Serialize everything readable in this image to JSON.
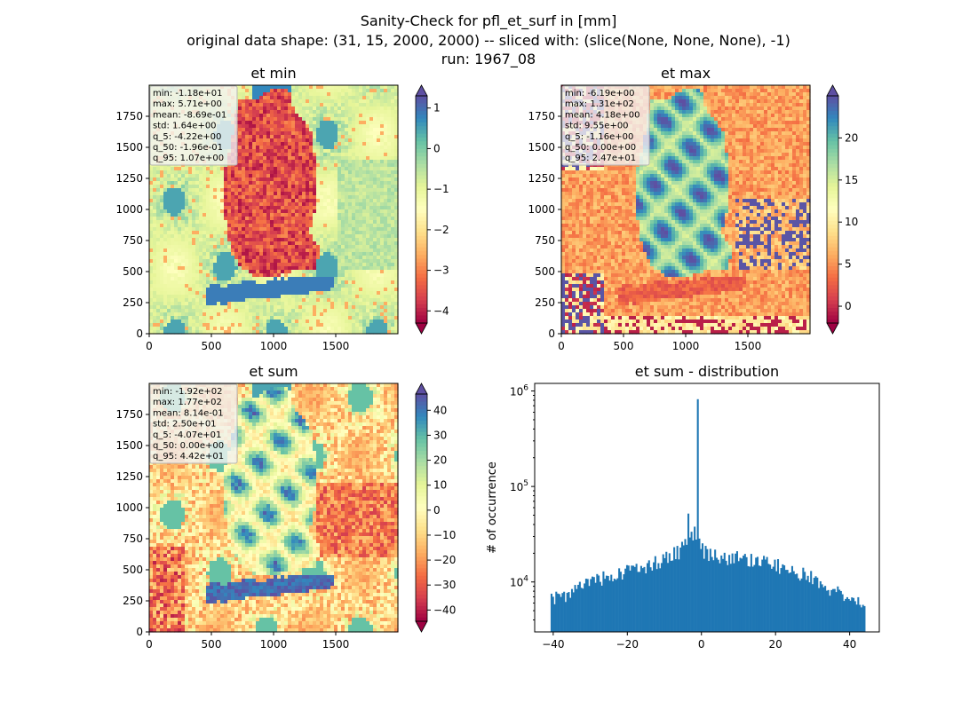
{
  "figure": {
    "suptitle": [
      "Sanity-Check for pfl_et_surf in [mm]",
      "original data shape: (31, 15, 2000, 2000) -- sliced with: (slice(None, None, None), -1)",
      "run: 1967_08"
    ]
  },
  "chart_data": [
    {
      "type": "heatmap",
      "title": "et min",
      "colormap": "Spectral",
      "xlim": [
        0,
        2000
      ],
      "ylim": [
        0,
        2000
      ],
      "xticks": [
        "0",
        "500",
        "1000",
        "1500"
      ],
      "yticks": [
        "0",
        "250",
        "500",
        "750",
        "1000",
        "1250",
        "1500",
        "1750"
      ],
      "color_range": [
        -4.3,
        1.3
      ],
      "colorbar_ticks": [
        "1",
        "0",
        "−1",
        "−2",
        "−3",
        "−4"
      ],
      "colorbar_tick_values": [
        1,
        0,
        -1,
        -2,
        -3,
        -4
      ],
      "stats": [
        "min: -1.18e+01",
        "max: 5.71e+00",
        "mean: -8.69e-01",
        "std: 1.64e+00",
        "q_5: -4.22e+00",
        "q_50: -1.96e-01",
        "q_95: 1.07e+00"
      ]
    },
    {
      "type": "heatmap",
      "title": "et max",
      "colormap": "Spectral",
      "xlim": [
        0,
        2000
      ],
      "ylim": [
        0,
        2000
      ],
      "xticks": [
        "0",
        "500",
        "1000",
        "1500"
      ],
      "yticks": [
        "0",
        "250",
        "500",
        "750",
        "1000",
        "1250",
        "1500",
        "1750"
      ],
      "color_range": [
        -2.0,
        25.0
      ],
      "colorbar_ticks": [
        "20",
        "15",
        "10",
        "5",
        "0"
      ],
      "colorbar_tick_values": [
        20,
        15,
        10,
        5,
        0
      ],
      "stats": [
        "min: -6.19e+00",
        "max: 1.31e+02",
        "mean: 4.18e+00",
        "std: 9.55e+00",
        "q_5: -1.16e+00",
        "q_50: 0.00e+00",
        "q_95: 2.47e+01"
      ]
    },
    {
      "type": "heatmap",
      "title": "et sum",
      "colormap": "Spectral",
      "xlim": [
        0,
        2000
      ],
      "ylim": [
        0,
        2000
      ],
      "xticks": [
        "0",
        "500",
        "1000",
        "1500"
      ],
      "yticks": [
        "0",
        "250",
        "500",
        "750",
        "1000",
        "1250",
        "1500",
        "1750"
      ],
      "color_range": [
        -44.5,
        46.5
      ],
      "colorbar_ticks": [
        "40",
        "30",
        "20",
        "10",
        "0",
        "−10",
        "−20",
        "−30",
        "−40"
      ],
      "colorbar_tick_values": [
        40,
        30,
        20,
        10,
        0,
        -10,
        -20,
        -30,
        -40
      ],
      "stats": [
        "min: -1.92e+02",
        "max: 1.77e+02",
        "mean: 8.14e-01",
        "std: 2.50e+01",
        "q_5: -4.07e+01",
        "q_50: 0.00e+00",
        "q_95: 4.42e+01"
      ]
    },
    {
      "type": "bar",
      "subtype": "histogram",
      "title": "et sum - distribution",
      "xlabel": "",
      "ylabel": "# of occurrence",
      "yscale": "log",
      "xlim": [
        -45,
        48
      ],
      "ylim": [
        3000,
        1200000
      ],
      "xticks": [
        "−40",
        "−20",
        "0",
        "20",
        "40"
      ],
      "xtick_values": [
        -40,
        -20,
        0,
        20,
        40
      ],
      "yticks": [
        "10^4",
        "10^5",
        "10^6"
      ],
      "ytick_values": [
        10000,
        100000,
        1000000
      ],
      "color": "#1f77b4",
      "bin_range": [
        -40.7,
        44.2
      ],
      "bins": 200,
      "profile_x": [
        -40.7,
        -35,
        -30,
        -25,
        -20,
        -15,
        -10,
        -6,
        -4,
        -3,
        -2,
        -1,
        0,
        1,
        2,
        3,
        5,
        10,
        15,
        20,
        25,
        30,
        35,
        40,
        44.2
      ],
      "profile_y": [
        6500,
        7800,
        9800,
        11500,
        13000,
        14800,
        17500,
        21000,
        25000,
        30000,
        34000,
        26000,
        22000,
        21000,
        20000,
        19500,
        18500,
        18000,
        16500,
        15000,
        13000,
        11000,
        8500,
        6500,
        5500
      ],
      "peaks": [
        {
          "x": -0.9,
          "y": 820000
        },
        {
          "x": -3.6,
          "y": 52000
        }
      ]
    }
  ]
}
